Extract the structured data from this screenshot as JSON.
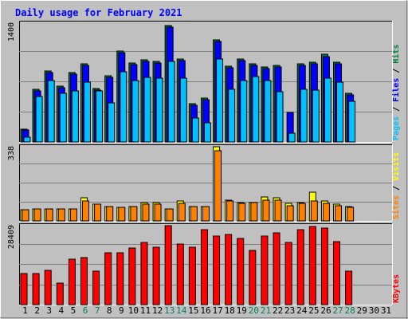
{
  "chart_data": {
    "type": "bar",
    "title": "Daily usage for February 2021",
    "categories": [
      "1",
      "2",
      "3",
      "4",
      "5",
      "6",
      "7",
      "8",
      "9",
      "10",
      "11",
      "12",
      "13",
      "14",
      "15",
      "16",
      "17",
      "18",
      "19",
      "20",
      "21",
      "22",
      "23",
      "24",
      "25",
      "26",
      "27",
      "28",
      "29",
      "30",
      "31"
    ],
    "weekend_days": [
      "6",
      "7",
      "13",
      "14",
      "20",
      "21",
      "27",
      "28"
    ],
    "colors": {
      "background": "#c0c0c0",
      "title": "#0000ff",
      "hits": "#008040",
      "files": "#0000ff",
      "pages": "#00c0ff",
      "visits": "#ffff00",
      "sites": "#ff8000",
      "kbytes": "#ff0000",
      "weekend_label": "#00805c",
      "weekday_label": "#000000"
    },
    "panels": [
      {
        "id": "hits-files-pages",
        "ymax": 1400,
        "ymax_label": "1400",
        "axis_label": [
          "Pages",
          "Files",
          "Hits"
        ],
        "axis_label_colors": [
          "#00c0ff",
          "#0000ff",
          "#008040"
        ],
        "series": [
          {
            "name": "Hits",
            "color": "#008040",
            "values": [
              150,
              620,
              840,
              660,
              820,
              920,
              630,
              780,
              1070,
              930,
              970,
              950,
              1370,
              980,
              450,
              520,
              1200,
              890,
              980,
              920,
              880,
              900,
              0,
              920,
              940,
              1030,
              940,
              570,
              null,
              null,
              null
            ]
          },
          {
            "name": "Files",
            "color": "#0000ff",
            "values": [
              140,
              600,
              820,
              640,
              800,
              900,
              610,
              760,
              1050,
              910,
              950,
              930,
              1350,
              960,
              430,
              500,
              1180,
              870,
              960,
              900,
              860,
              880,
              350,
              900,
              920,
              1010,
              920,
              550,
              null,
              null,
              null
            ]
          },
          {
            "name": "Pages",
            "color": "#00c0ff",
            "values": [
              60,
              540,
              720,
              570,
              600,
              700,
              600,
              460,
              830,
              720,
              760,
              750,
              950,
              750,
              280,
              230,
              980,
              620,
              720,
              770,
              720,
              590,
              100,
              620,
              610,
              750,
              700,
              480,
              null,
              null,
              null
            ]
          }
        ]
      },
      {
        "id": "visits-sites",
        "ymax": 338,
        "ymax_label": "338",
        "axis_label": [
          "Sites",
          "Visits"
        ],
        "axis_label_colors": [
          "#ff8000",
          "#ffff00"
        ],
        "series": [
          {
            "name": "Visits",
            "color": "#ffff00",
            "values": [
              50,
              55,
              55,
              55,
              55,
              105,
              75,
              65,
              60,
              65,
              85,
              85,
              55,
              90,
              65,
              65,
              338,
              95,
              85,
              85,
              110,
              105,
              80,
              85,
              130,
              90,
              75,
              65,
              null,
              null,
              null
            ]
          },
          {
            "name": "Sites",
            "color": "#ff8000",
            "values": [
              50,
              55,
              55,
              55,
              55,
              90,
              75,
              65,
              60,
              65,
              75,
              75,
              55,
              80,
              65,
              65,
              320,
              90,
              80,
              85,
              95,
              95,
              70,
              80,
              90,
              80,
              70,
              60,
              null,
              null,
              null
            ]
          }
        ]
      },
      {
        "id": "kbytes",
        "ymax": 28409,
        "ymax_label": "28409",
        "axis_label": [
          "KBytes"
        ],
        "axis_label_colors": [
          "#ff0000"
        ],
        "series": [
          {
            "name": "KBytes",
            "color": "#ff0000",
            "values": [
              11100,
              11100,
              12300,
              7800,
              16500,
              17000,
              12100,
              18700,
              18700,
              20300,
              22300,
              20800,
              28400,
              21700,
              20700,
              27000,
              24700,
              25200,
              23700,
              19500,
              24700,
              25900,
              22300,
              26900,
              28200,
              27600,
              22700,
              12100,
              null,
              null,
              null
            ]
          }
        ]
      }
    ]
  }
}
